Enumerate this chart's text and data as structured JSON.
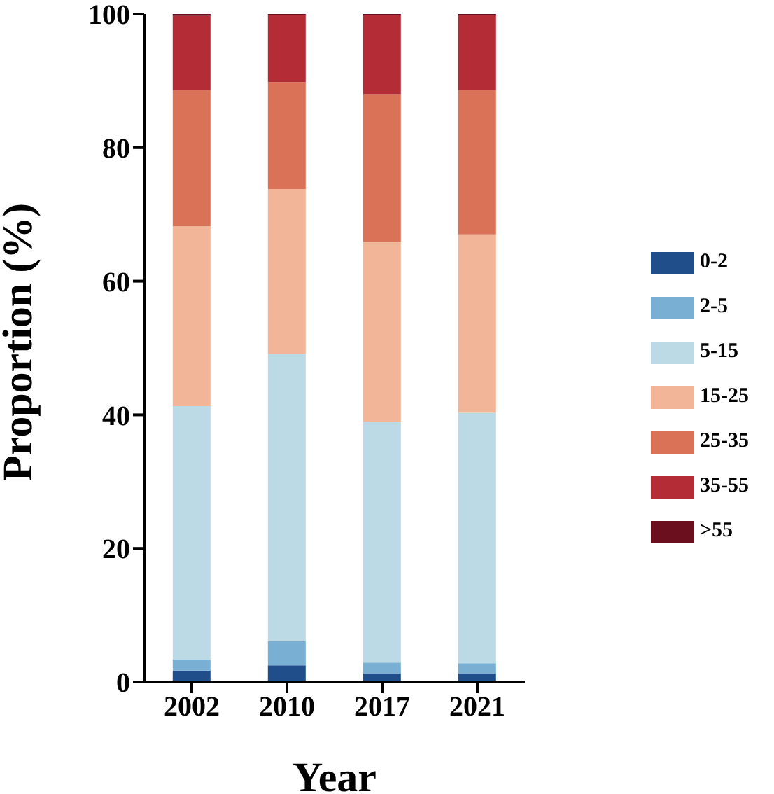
{
  "chart_data": {
    "type": "bar",
    "stacked": true,
    "xlabel": "Year",
    "ylabel": "Proportion (%)",
    "categories": [
      "2002",
      "2010",
      "2017",
      "2021"
    ],
    "ylim": [
      0,
      100
    ],
    "yticks": [
      0,
      20,
      40,
      60,
      80,
      100
    ],
    "legend": "right",
    "grid": false,
    "series": [
      {
        "name": "0-2",
        "color": "#1f4e8a",
        "values": [
          1.7,
          2.5,
          1.3,
          1.3
        ]
      },
      {
        "name": "2-5",
        "color": "#79afd2",
        "values": [
          1.7,
          3.6,
          1.6,
          1.5
        ]
      },
      {
        "name": "5-15",
        "color": "#bcd9e6",
        "values": [
          37.9,
          43.0,
          36.1,
          37.5
        ]
      },
      {
        "name": "15-25",
        "color": "#f2b598",
        "values": [
          26.9,
          24.7,
          26.9,
          26.7
        ]
      },
      {
        "name": "25-35",
        "color": "#d97257",
        "values": [
          20.4,
          16.0,
          22.1,
          21.6
        ]
      },
      {
        "name": "35-55",
        "color": "#b42c35",
        "values": [
          11.1,
          10.1,
          11.8,
          11.2
        ]
      },
      {
        "name": ">55",
        "color": "#6b0f1e",
        "values": [
          0.3,
          0.1,
          0.2,
          0.2
        ]
      }
    ]
  }
}
